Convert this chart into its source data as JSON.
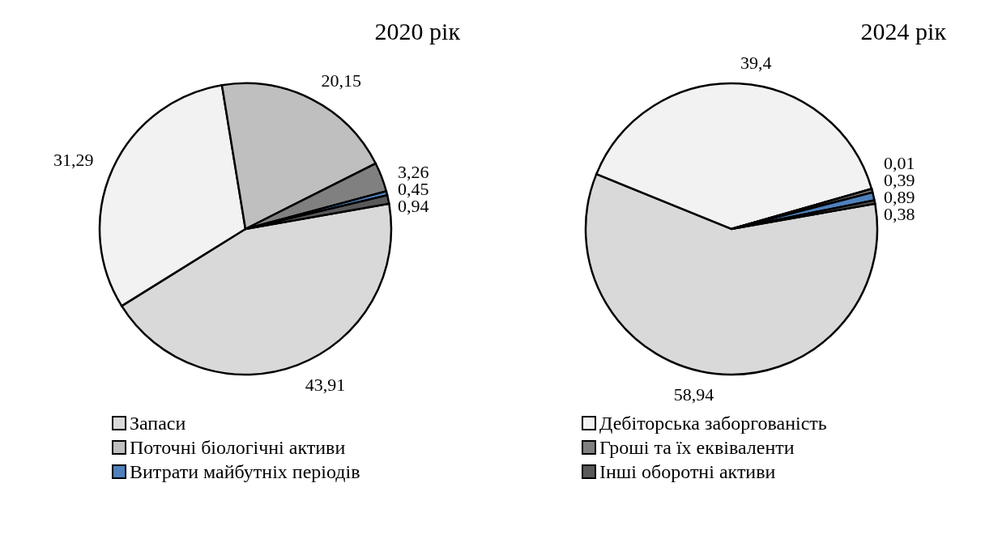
{
  "chart_data": {
    "type": "pie",
    "categories": [
      "Запаси",
      "Дебіторська заборгованість",
      "Поточні біологічні активи",
      "Гроші та їх еквіваленти",
      "Витрати майбутніх періодів",
      "Інші оборотні активи"
    ],
    "colors": [
      "#d9d9d9",
      "#f2f2f2",
      "#bfbfbf",
      "#808080",
      "#4f81bd",
      "#595959"
    ],
    "legend": "bottom",
    "series": [
      {
        "name": "2020 рік",
        "values": [
          43.91,
          31.29,
          20.15,
          3.26,
          0.45,
          0.94
        ],
        "value_labels": [
          "43,91",
          "31,29",
          "20,15",
          "3,26",
          "0,45",
          "0,94"
        ]
      },
      {
        "name": "2024 рік",
        "values": [
          58.94,
          39.4,
          0.01,
          0.39,
          0.89,
          0.38
        ],
        "value_labels": [
          "58,94",
          "39,4",
          "0,01",
          "0,39",
          "0,89",
          "0,38"
        ]
      }
    ]
  }
}
